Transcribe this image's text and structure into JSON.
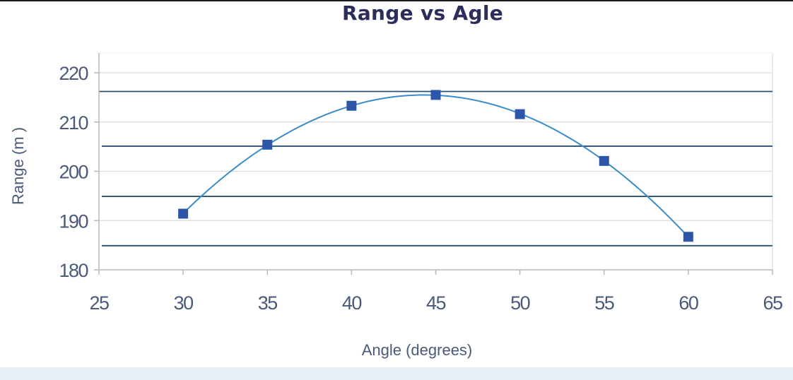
{
  "chart_data": {
    "type": "scatter",
    "title": "Range vs Agle",
    "xlabel": "Angle (degrees)",
    "ylabel": "Range (m )",
    "xlim": [
      25,
      65
    ],
    "ylim": [
      180,
      220
    ],
    "x_ticks": [
      "25",
      "30",
      "35",
      "40",
      "45",
      "50",
      "55",
      "60",
      "65"
    ],
    "y_ticks": [
      "180",
      "190",
      "200",
      "210",
      "220"
    ],
    "grid": true,
    "series": [
      {
        "x": [
          30,
          35,
          40,
          45,
          50,
          55,
          60
        ],
        "y": [
          191.4,
          205.4,
          213.3,
          215.5,
          211.6,
          202.1,
          186.7
        ],
        "marker": "square",
        "color": "#2e56a8",
        "trendline": "polynomial"
      }
    ],
    "horizontal_lines_y": [
      184.9,
      194.9,
      205.1,
      216.2
    ],
    "colors": {
      "title": "#2b2e5a",
      "axis_text": "#4a5a78",
      "grid": "#dcdcdc",
      "hline": "#2b4f74",
      "curve": "#3a8cc9"
    }
  }
}
